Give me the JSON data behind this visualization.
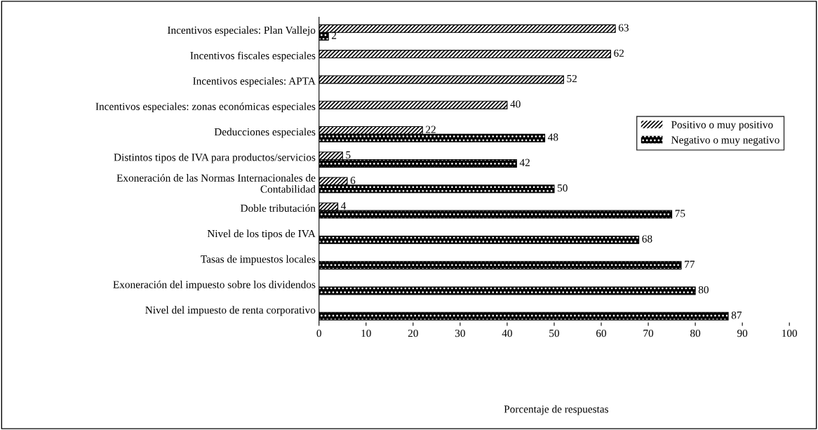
{
  "chart_data": {
    "type": "bar",
    "orientation": "horizontal",
    "categories": [
      "Incentivos especiales: Plan Vallejo",
      "Incentivos fiscales especiales",
      "Incentivos especiales: APTA",
      "Incentivos especiales: zonas económicas especiales",
      "Deducciones especiales",
      "Distintos tipos de IVA para productos/servicios",
      "Exoneración de las Normas Internacionales de\nContabilidad",
      "Doble tributación",
      "Nivel de los tipos de IVA",
      "Tasas de impuestos locales",
      "Exoneración del impuesto sobre los dividendos",
      "Nivel del impuesto de renta corporativo"
    ],
    "series": [
      {
        "name": "Positivo o muy positivo",
        "color": "#ffffff",
        "values": [
          63,
          62,
          52,
          40,
          22,
          5,
          6,
          4,
          null,
          null,
          null,
          null
        ]
      },
      {
        "name": "Negativo o muy negativo",
        "color": "#000000",
        "values": [
          2,
          null,
          null,
          null,
          48,
          42,
          50,
          75,
          68,
          77,
          80,
          87
        ]
      }
    ],
    "annotations": [
      "Porcentaje de respuestas"
    ],
    "xlim": [
      0,
      100
    ],
    "xticks": [
      0,
      10,
      20,
      30,
      40,
      50,
      60,
      70,
      80,
      90,
      100
    ],
    "data_labels": true,
    "legend": "right",
    "grid": false
  }
}
